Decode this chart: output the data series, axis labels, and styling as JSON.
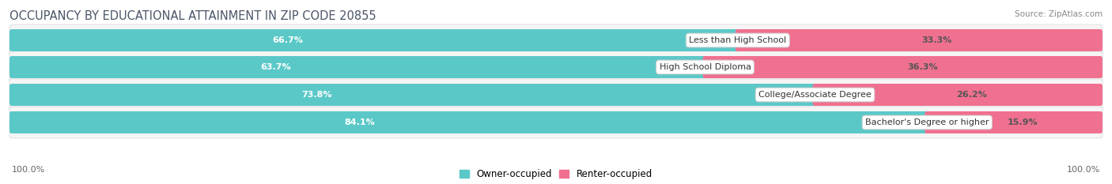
{
  "title": "OCCUPANCY BY EDUCATIONAL ATTAINMENT IN ZIP CODE 20855",
  "source": "Source: ZipAtlas.com",
  "categories": [
    "Less than High School",
    "High School Diploma",
    "College/Associate Degree",
    "Bachelor's Degree or higher"
  ],
  "owner_values": [
    66.7,
    63.7,
    73.8,
    84.1
  ],
  "renter_values": [
    33.3,
    36.3,
    26.2,
    15.9
  ],
  "owner_color": "#5BC8C8",
  "renter_color": "#F07090",
  "track_color": "#E0E0E0",
  "row_bg_color": "#F0F0F0",
  "title_fontsize": 10.5,
  "source_fontsize": 7.5,
  "label_fontsize": 8,
  "bar_value_fontsize": 8,
  "legend_fontsize": 8.5,
  "axis_label_fontsize": 8,
  "x_axis_left": "100.0%",
  "x_axis_right": "100.0%",
  "legend_owner": "Owner-occupied",
  "legend_renter": "Renter-occupied"
}
